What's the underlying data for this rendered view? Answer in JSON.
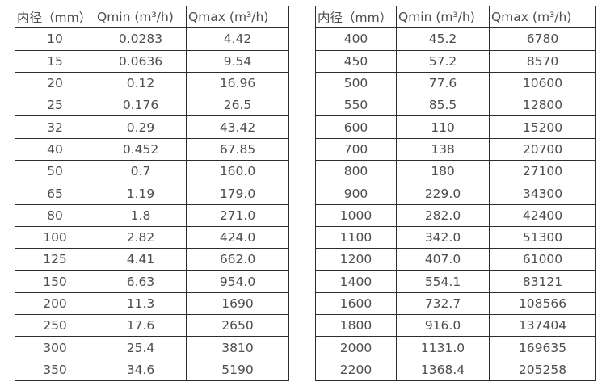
{
  "colors": {
    "background": "#ffffff",
    "border": "#2d2d2d",
    "text": "#4d4d4d"
  },
  "tables": [
    {
      "name": "flow-table-small-diameters",
      "headers": [
        "内径（mm）",
        "Qmin (m³/h)",
        "Qmax (m³/h)"
      ],
      "rows": [
        [
          "10",
          "0.0283",
          "4.42"
        ],
        [
          "15",
          "0.0636",
          "9.54"
        ],
        [
          "20",
          "0.12",
          "16.96"
        ],
        [
          "25",
          "0.176",
          "26.5"
        ],
        [
          "32",
          "0.29",
          "43.42"
        ],
        [
          "40",
          "0.452",
          "67.85"
        ],
        [
          "50",
          "0.7",
          "160.0"
        ],
        [
          "65",
          "1.19",
          "179.0"
        ],
        [
          "80",
          "1.8",
          "271.0"
        ],
        [
          "100",
          "2.82",
          "424.0"
        ],
        [
          "125",
          "4.41",
          "662.0"
        ],
        [
          "150",
          "6.63",
          "954.0"
        ],
        [
          "200",
          "11.3",
          "1690"
        ],
        [
          "250",
          "17.6",
          "2650"
        ],
        [
          "300",
          "25.4",
          "3810"
        ],
        [
          "350",
          "34.6",
          "5190"
        ]
      ]
    },
    {
      "name": "flow-table-large-diameters",
      "headers": [
        "内径（mm）",
        "Qmin (m³/h)",
        "Qmax (m³/h)"
      ],
      "rows": [
        [
          "400",
          "45.2",
          "6780"
        ],
        [
          "450",
          "57.2",
          "8570"
        ],
        [
          "500",
          "77.6",
          "10600"
        ],
        [
          "550",
          "85.5",
          "12800"
        ],
        [
          "600",
          "110",
          "15200"
        ],
        [
          "700",
          "138",
          "20700"
        ],
        [
          "800",
          "180",
          "27100"
        ],
        [
          "900",
          "229.0",
          "34300"
        ],
        [
          "1000",
          "282.0",
          "42400"
        ],
        [
          "1100",
          "342.0",
          "51300"
        ],
        [
          "1200",
          "407.0",
          "61000"
        ],
        [
          "1400",
          "554.1",
          "83121"
        ],
        [
          "1600",
          "732.7",
          "108566"
        ],
        [
          "1800",
          "916.0",
          "137404"
        ],
        [
          "2000",
          "1131.0",
          "169635"
        ],
        [
          "2200",
          "1368.4",
          "205258"
        ]
      ]
    }
  ]
}
